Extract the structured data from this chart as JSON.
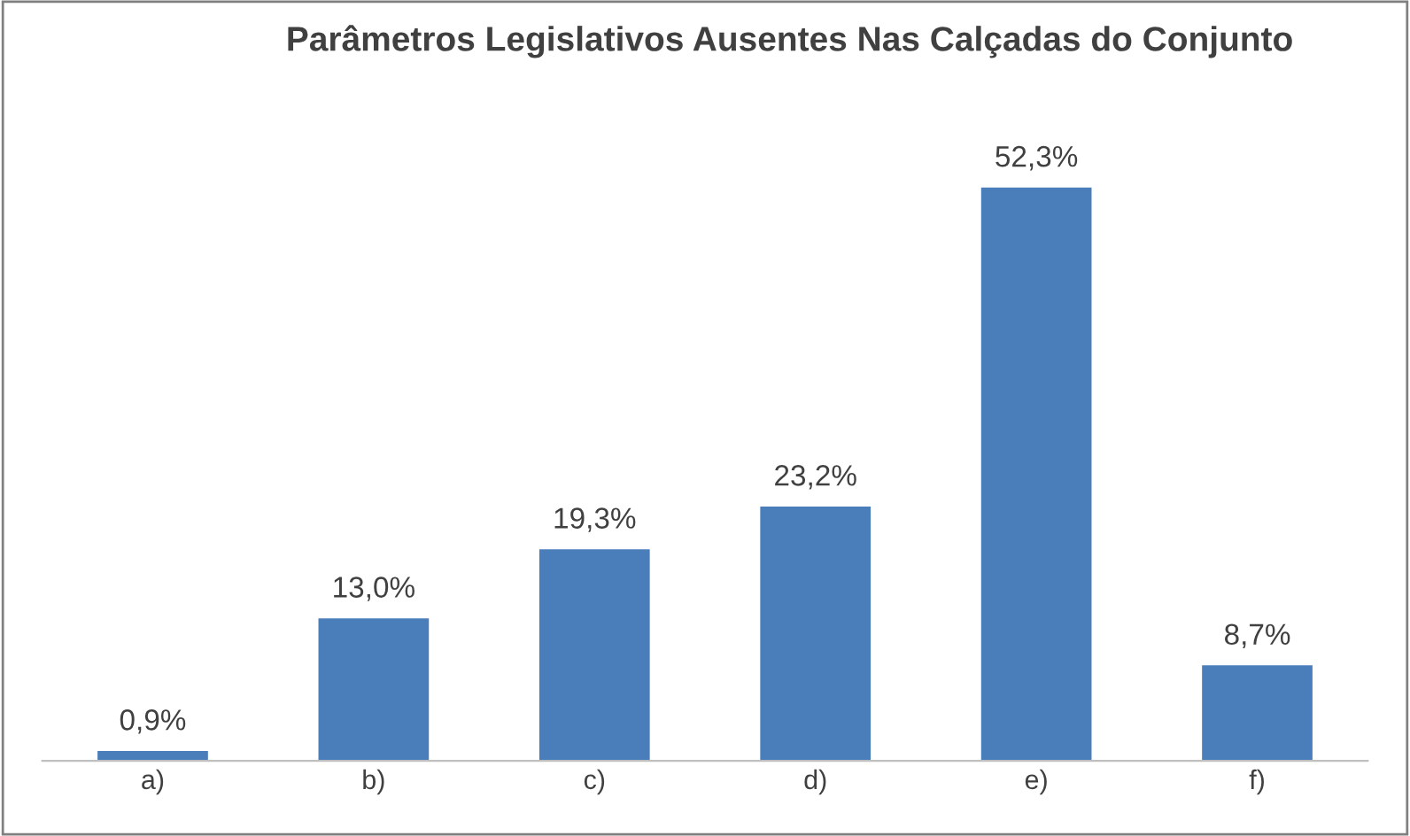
{
  "chart_data": {
    "type": "bar",
    "title": "Parâmetros Legislativos Ausentes Nas Calçadas do Conjunto",
    "categories": [
      "a)",
      "b)",
      "c)",
      "d)",
      "e)",
      "f)"
    ],
    "values": [
      0.9,
      13.0,
      19.3,
      23.2,
      52.3,
      8.7
    ],
    "value_labels": [
      "0,9%",
      "13,0%",
      "19,3%",
      "23,2%",
      "52,3%",
      "8,7%"
    ],
    "color": "#4a7ebb",
    "grid": false,
    "legend": false
  }
}
